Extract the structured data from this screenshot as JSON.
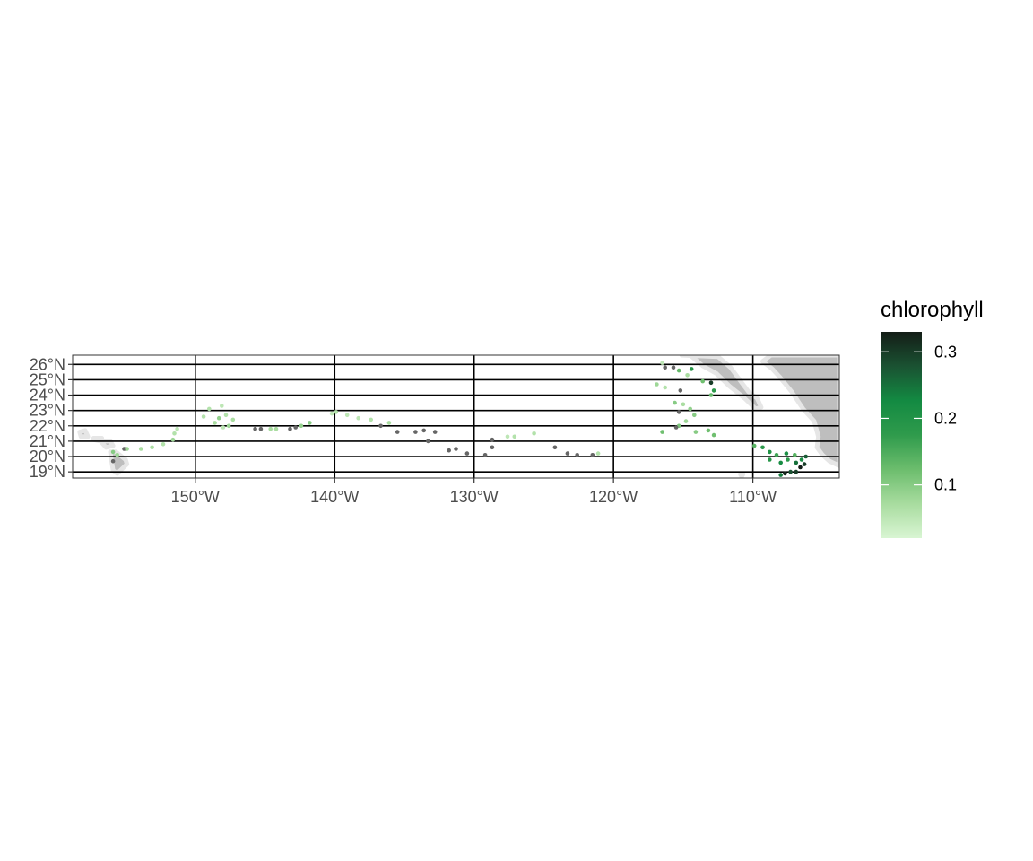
{
  "map": {
    "extent": {
      "lon": [
        -158.8,
        -103.8
      ],
      "lat": [
        18.6,
        26.6
      ]
    },
    "lat_ticks": [
      19,
      20,
      21,
      22,
      23,
      24,
      25,
      26
    ],
    "lat_labels": [
      "19°N",
      "20°N",
      "21°N",
      "22°N",
      "23°N",
      "24°N",
      "25°N",
      "26°N"
    ],
    "lon_ticks": [
      -150,
      -140,
      -130,
      -120,
      -110
    ],
    "lon_labels": [
      "150°W",
      "140°W",
      "130°W",
      "120°W",
      "110°W"
    ],
    "colors": {
      "land": "#bebebe",
      "coast_halo": "#e6e6e6",
      "missing": "#666666",
      "gridline": "#000000",
      "panel_border": "#333333"
    },
    "land": {
      "baja": [
        [
          -115.1,
          26.6
        ],
        [
          -114.5,
          26.6
        ],
        [
          -113.6,
          25.9
        ],
        [
          -112.6,
          25.4
        ],
        [
          -111.7,
          24.6
        ],
        [
          -110.6,
          23.8
        ],
        [
          -109.8,
          23.1
        ],
        [
          -109.4,
          23.2
        ],
        [
          -109.7,
          23.8
        ],
        [
          -110.3,
          24.2
        ],
        [
          -110.8,
          24.8
        ],
        [
          -111.6,
          25.8
        ],
        [
          -112.5,
          26.5
        ]
      ],
      "mainland": [
        [
          -108.7,
          26.6
        ],
        [
          -103.8,
          26.6
        ],
        [
          -103.8,
          19.4
        ],
        [
          -104.5,
          19.7
        ],
        [
          -105.0,
          20.1
        ],
        [
          -105.4,
          20.6
        ],
        [
          -105.3,
          21.3
        ],
        [
          -105.6,
          22.3
        ],
        [
          -106.4,
          23.1
        ],
        [
          -107.2,
          24.2
        ],
        [
          -108.1,
          25.2
        ],
        [
          -108.6,
          25.7
        ],
        [
          -109.3,
          26.2
        ]
      ],
      "islands": [
        [
          [
            -156.1,
            20.3
          ],
          [
            -155.7,
            20.3
          ],
          [
            -155.0,
            19.8
          ],
          [
            -154.9,
            19.5
          ],
          [
            -155.6,
            18.9
          ],
          [
            -155.9,
            19.1
          ],
          [
            -156.0,
            19.7
          ]
        ],
        [
          [
            -156.7,
            21.0
          ],
          [
            -156.1,
            21.0
          ],
          [
            -155.9,
            20.7
          ],
          [
            -156.4,
            20.6
          ],
          [
            -156.7,
            20.9
          ]
        ],
        [
          [
            -158.3,
            21.6
          ],
          [
            -157.9,
            21.7
          ],
          [
            -157.7,
            21.3
          ],
          [
            -158.2,
            21.3
          ]
        ],
        [
          [
            -157.3,
            21.2
          ],
          [
            -156.7,
            21.2
          ],
          [
            -156.8,
            21.0
          ],
          [
            -157.3,
            21.1
          ]
        ],
        [
          [
            -110.9,
            18.85
          ],
          [
            -110.7,
            18.85
          ],
          [
            -110.8,
            18.7
          ]
        ]
      ]
    }
  },
  "legend": {
    "title": "chlorophyll",
    "breaks": [
      0.1,
      0.2,
      0.3
    ],
    "break_labels": [
      "0.1",
      "0.2",
      "0.3"
    ],
    "range": [
      0.02,
      0.33
    ],
    "palette": [
      "#d9f5d3",
      "#a8dc9f",
      "#6cbd6d",
      "#2f9b4c",
      "#138a42",
      "#1a5232",
      "#141d17"
    ]
  },
  "chart_data": {
    "type": "scatter",
    "x_label": "",
    "y_label": "",
    "variable": "chlorophyll",
    "points": [
      {
        "lon": -155.1,
        "lat": 20.5,
        "value": null
      },
      {
        "lon": -155.9,
        "lat": 19.7,
        "value": null
      },
      {
        "lon": -155.9,
        "lat": 20.3,
        "value": 0.1
      },
      {
        "lon": -155.6,
        "lat": 20.1,
        "value": 0.08
      },
      {
        "lon": -154.9,
        "lat": 20.5,
        "value": 0.08
      },
      {
        "lon": -153.9,
        "lat": 20.5,
        "value": 0.07
      },
      {
        "lon": -153.1,
        "lat": 20.6,
        "value": 0.07
      },
      {
        "lon": -152.3,
        "lat": 20.8,
        "value": 0.06
      },
      {
        "lon": -151.6,
        "lat": 21.1,
        "value": 0.08
      },
      {
        "lon": -151.5,
        "lat": 21.5,
        "value": 0.06
      },
      {
        "lon": -151.3,
        "lat": 21.8,
        "value": 0.05
      },
      {
        "lon": -149.4,
        "lat": 22.6,
        "value": 0.06
      },
      {
        "lon": -149.0,
        "lat": 23.1,
        "value": 0.06
      },
      {
        "lon": -148.6,
        "lat": 22.2,
        "value": 0.07
      },
      {
        "lon": -148.3,
        "lat": 22.5,
        "value": 0.09
      },
      {
        "lon": -148.1,
        "lat": 23.3,
        "value": 0.05
      },
      {
        "lon": -147.8,
        "lat": 22.7,
        "value": 0.06
      },
      {
        "lon": -147.6,
        "lat": 22.0,
        "value": 0.08
      },
      {
        "lon": -147.3,
        "lat": 22.4,
        "value": 0.07
      },
      {
        "lon": -148.0,
        "lat": 21.9,
        "value": 0.05
      },
      {
        "lon": -145.7,
        "lat": 21.8,
        "value": null
      },
      {
        "lon": -145.3,
        "lat": 21.8,
        "value": null
      },
      {
        "lon": -144.6,
        "lat": 21.8,
        "value": 0.07
      },
      {
        "lon": -144.2,
        "lat": 21.8,
        "value": 0.07
      },
      {
        "lon": -143.2,
        "lat": 21.8,
        "value": null
      },
      {
        "lon": -142.8,
        "lat": 21.9,
        "value": null
      },
      {
        "lon": -142.4,
        "lat": 22.0,
        "value": 0.09
      },
      {
        "lon": -141.8,
        "lat": 22.2,
        "value": 0.1
      },
      {
        "lon": -140.2,
        "lat": 22.8,
        "value": 0.05
      },
      {
        "lon": -139.9,
        "lat": 22.9,
        "value": 0.06
      },
      {
        "lon": -139.1,
        "lat": 22.7,
        "value": 0.05
      },
      {
        "lon": -138.3,
        "lat": 22.5,
        "value": 0.05
      },
      {
        "lon": -137.4,
        "lat": 22.4,
        "value": 0.06
      },
      {
        "lon": -136.7,
        "lat": 22.0,
        "value": null
      },
      {
        "lon": -136.1,
        "lat": 22.2,
        "value": 0.07
      },
      {
        "lon": -135.5,
        "lat": 21.6,
        "value": null
      },
      {
        "lon": -134.2,
        "lat": 21.6,
        "value": null
      },
      {
        "lon": -133.6,
        "lat": 21.7,
        "value": null
      },
      {
        "lon": -133.3,
        "lat": 21.0,
        "value": null
      },
      {
        "lon": -132.8,
        "lat": 21.6,
        "value": null
      },
      {
        "lon": -131.8,
        "lat": 20.4,
        "value": null
      },
      {
        "lon": -131.3,
        "lat": 20.5,
        "value": null
      },
      {
        "lon": -130.5,
        "lat": 20.2,
        "value": null
      },
      {
        "lon": -129.2,
        "lat": 20.1,
        "value": null
      },
      {
        "lon": -128.7,
        "lat": 20.6,
        "value": null
      },
      {
        "lon": -128.7,
        "lat": 21.1,
        "value": null
      },
      {
        "lon": -127.6,
        "lat": 21.3,
        "value": 0.05
      },
      {
        "lon": -127.1,
        "lat": 21.3,
        "value": 0.06
      },
      {
        "lon": -125.7,
        "lat": 21.5,
        "value": 0.06
      },
      {
        "lon": -124.2,
        "lat": 20.6,
        "value": null
      },
      {
        "lon": -123.3,
        "lat": 20.2,
        "value": null
      },
      {
        "lon": -122.6,
        "lat": 20.1,
        "value": null
      },
      {
        "lon": -121.5,
        "lat": 20.1,
        "value": null
      },
      {
        "lon": -121.1,
        "lat": 20.2,
        "value": 0.06
      },
      {
        "lon": -116.5,
        "lat": 26.1,
        "value": 0.05
      },
      {
        "lon": -116.3,
        "lat": 25.8,
        "value": null
      },
      {
        "lon": -115.7,
        "lat": 25.8,
        "value": null
      },
      {
        "lon": -115.3,
        "lat": 25.6,
        "value": 0.13
      },
      {
        "lon": -114.4,
        "lat": 25.7,
        "value": 0.19
      },
      {
        "lon": -114.7,
        "lat": 25.3,
        "value": 0.07
      },
      {
        "lon": -113.6,
        "lat": 24.9,
        "value": 0.12
      },
      {
        "lon": -113.0,
        "lat": 24.8,
        "value": 0.3
      },
      {
        "lon": -112.8,
        "lat": 24.3,
        "value": 0.18
      },
      {
        "lon": -113.0,
        "lat": 24.0,
        "value": 0.13
      },
      {
        "lon": -115.2,
        "lat": 24.3,
        "value": null
      },
      {
        "lon": -116.9,
        "lat": 24.7,
        "value": 0.08
      },
      {
        "lon": -116.3,
        "lat": 24.5,
        "value": 0.06
      },
      {
        "lon": -115.6,
        "lat": 23.5,
        "value": 0.1
      },
      {
        "lon": -115.0,
        "lat": 23.4,
        "value": 0.07
      },
      {
        "lon": -114.5,
        "lat": 23.1,
        "value": 0.09
      },
      {
        "lon": -114.2,
        "lat": 22.7,
        "value": 0.1
      },
      {
        "lon": -115.3,
        "lat": 22.9,
        "value": null
      },
      {
        "lon": -114.8,
        "lat": 22.3,
        "value": 0.08
      },
      {
        "lon": -115.3,
        "lat": 22.0,
        "value": 0.11
      },
      {
        "lon": -114.1,
        "lat": 21.6,
        "value": 0.1
      },
      {
        "lon": -113.2,
        "lat": 21.7,
        "value": 0.12
      },
      {
        "lon": -112.8,
        "lat": 21.4,
        "value": 0.12
      },
      {
        "lon": -116.5,
        "lat": 21.6,
        "value": 0.12
      },
      {
        "lon": -115.5,
        "lat": 21.9,
        "value": null
      },
      {
        "lon": -109.9,
        "lat": 20.7,
        "value": 0.14
      },
      {
        "lon": -109.3,
        "lat": 20.6,
        "value": 0.18
      },
      {
        "lon": -108.8,
        "lat": 20.3,
        "value": 0.2
      },
      {
        "lon": -108.3,
        "lat": 20.1,
        "value": 0.16
      },
      {
        "lon": -107.6,
        "lat": 20.2,
        "value": 0.21
      },
      {
        "lon": -107.0,
        "lat": 20.1,
        "value": 0.14
      },
      {
        "lon": -106.5,
        "lat": 19.8,
        "value": 0.22
      },
      {
        "lon": -106.9,
        "lat": 19.6,
        "value": 0.25
      },
      {
        "lon": -107.5,
        "lat": 19.8,
        "value": 0.18
      },
      {
        "lon": -108.0,
        "lat": 19.6,
        "value": 0.22
      },
      {
        "lon": -108.8,
        "lat": 19.8,
        "value": 0.19
      },
      {
        "lon": -106.3,
        "lat": 19.5,
        "value": 0.3
      },
      {
        "lon": -106.6,
        "lat": 19.3,
        "value": 0.33
      },
      {
        "lon": -106.9,
        "lat": 19.0,
        "value": 0.3
      },
      {
        "lon": -107.3,
        "lat": 19.0,
        "value": 0.28
      },
      {
        "lon": -107.7,
        "lat": 18.9,
        "value": 0.32
      },
      {
        "lon": -108.0,
        "lat": 18.8,
        "value": 0.24
      },
      {
        "lon": -106.2,
        "lat": 20.0,
        "value": 0.27
      }
    ]
  }
}
